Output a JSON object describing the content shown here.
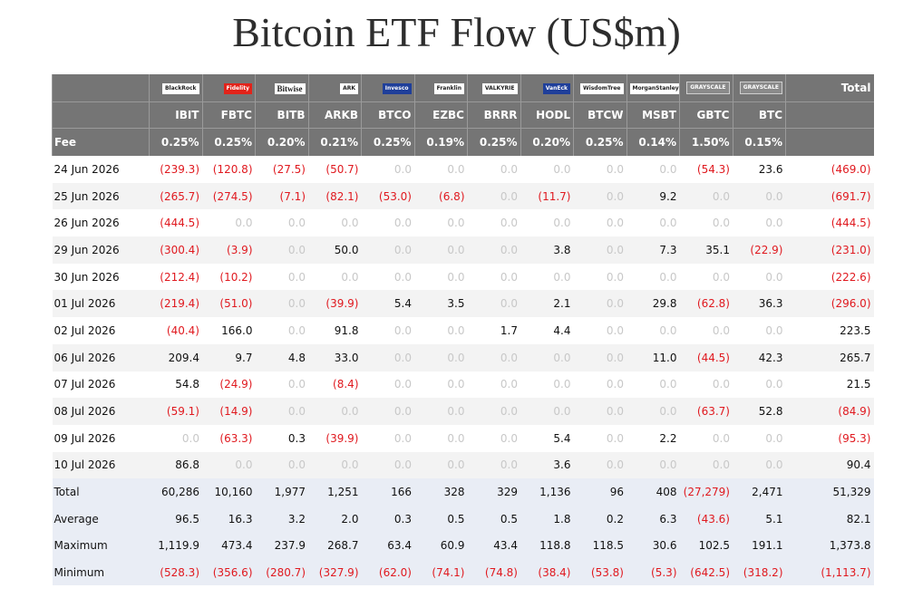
{
  "title": "Bitcoin ETF Flow (US$m)",
  "logos": [
    {
      "text": "BlackRock",
      "style": "white",
      "icon": "blackrock-logo"
    },
    {
      "text": "Fidelity",
      "style": "red",
      "icon": "fidelity-logo"
    },
    {
      "text": "Bitwise",
      "style": "white big",
      "icon": "bitwise-logo"
    },
    {
      "text": "ARK",
      "style": "white",
      "icon": "ark-logo"
    },
    {
      "text": "Invesco",
      "style": "blue",
      "icon": "invesco-logo"
    },
    {
      "text": "Franklin",
      "style": "white",
      "icon": "franklin-logo"
    },
    {
      "text": "VALKYRIE",
      "style": "white",
      "icon": "valkyrie-logo"
    },
    {
      "text": "VanEck",
      "style": "blue",
      "icon": "vaneck-logo"
    },
    {
      "text": "WisdomTree",
      "style": "white",
      "icon": "wisdomtree-logo"
    },
    {
      "text": "MorganStanley",
      "style": "white",
      "icon": "morgan-stanley-logo"
    },
    {
      "text": "GRAYSCALE",
      "style": "grey",
      "icon": "grayscale-logo"
    },
    {
      "text": "GRAYSCALE",
      "style": "grey",
      "icon": "grayscale-mini-logo"
    }
  ],
  "total_label": "Total",
  "tickers": [
    "IBIT",
    "FBTC",
    "BITB",
    "ARKB",
    "BTCO",
    "EZBC",
    "BRRR",
    "HODL",
    "BTCW",
    "MSBT",
    "GBTC",
    "BTC"
  ],
  "fee_label": "Fee",
  "fees": [
    "0.25%",
    "0.25%",
    "0.20%",
    "0.21%",
    "0.25%",
    "0.19%",
    "0.25%",
    "0.20%",
    "0.25%",
    "0.14%",
    "1.50%",
    "0.15%"
  ],
  "chart_data": {
    "type": "table",
    "title": "Bitcoin ETF Flow (US$m)",
    "columns": [
      "IBIT",
      "FBTC",
      "BITB",
      "ARKB",
      "BTCO",
      "EZBC",
      "BRRR",
      "HODL",
      "BTCW",
      "MSBT",
      "GBTC",
      "BTC",
      "Total"
    ],
    "rows": [
      {
        "date": "24 Jun 2026",
        "values": [
          "(239.3)",
          "(120.8)",
          "(27.5)",
          "(50.7)",
          "0.0",
          "0.0",
          "0.0",
          "0.0",
          "0.0",
          "0.0",
          "(54.3)",
          "23.6",
          "(469.0)"
        ]
      },
      {
        "date": "25 Jun 2026",
        "values": [
          "(265.7)",
          "(274.5)",
          "(7.1)",
          "(82.1)",
          "(53.0)",
          "(6.8)",
          "0.0",
          "(11.7)",
          "0.0",
          "9.2",
          "0.0",
          "0.0",
          "(691.7)"
        ]
      },
      {
        "date": "26 Jun 2026",
        "values": [
          "(444.5)",
          "0.0",
          "0.0",
          "0.0",
          "0.0",
          "0.0",
          "0.0",
          "0.0",
          "0.0",
          "0.0",
          "0.0",
          "0.0",
          "(444.5)"
        ]
      },
      {
        "date": "29 Jun 2026",
        "values": [
          "(300.4)",
          "(3.9)",
          "0.0",
          "50.0",
          "0.0",
          "0.0",
          "0.0",
          "3.8",
          "0.0",
          "7.3",
          "35.1",
          "(22.9)",
          "(231.0)"
        ]
      },
      {
        "date": "30 Jun 2026",
        "values": [
          "(212.4)",
          "(10.2)",
          "0.0",
          "0.0",
          "0.0",
          "0.0",
          "0.0",
          "0.0",
          "0.0",
          "0.0",
          "0.0",
          "0.0",
          "(222.6)"
        ]
      },
      {
        "date": "01 Jul 2026",
        "values": [
          "(219.4)",
          "(51.0)",
          "0.0",
          "(39.9)",
          "5.4",
          "3.5",
          "0.0",
          "2.1",
          "0.0",
          "29.8",
          "(62.8)",
          "36.3",
          "(296.0)"
        ]
      },
      {
        "date": "02 Jul 2026",
        "values": [
          "(40.4)",
          "166.0",
          "0.0",
          "91.8",
          "0.0",
          "0.0",
          "1.7",
          "4.4",
          "0.0",
          "0.0",
          "0.0",
          "0.0",
          "223.5"
        ]
      },
      {
        "date": "06 Jul 2026",
        "values": [
          "209.4",
          "9.7",
          "4.8",
          "33.0",
          "0.0",
          "0.0",
          "0.0",
          "0.0",
          "0.0",
          "11.0",
          "(44.5)",
          "42.3",
          "265.7"
        ]
      },
      {
        "date": "07 Jul 2026",
        "values": [
          "54.8",
          "(24.9)",
          "0.0",
          "(8.4)",
          "0.0",
          "0.0",
          "0.0",
          "0.0",
          "0.0",
          "0.0",
          "0.0",
          "0.0",
          "21.5"
        ]
      },
      {
        "date": "08 Jul 2026",
        "values": [
          "(59.1)",
          "(14.9)",
          "0.0",
          "0.0",
          "0.0",
          "0.0",
          "0.0",
          "0.0",
          "0.0",
          "0.0",
          "(63.7)",
          "52.8",
          "(84.9)"
        ]
      },
      {
        "date": "09 Jul 2026",
        "values": [
          "0.0",
          "(63.3)",
          "0.3",
          "(39.9)",
          "0.0",
          "0.0",
          "0.0",
          "5.4",
          "0.0",
          "2.2",
          "0.0",
          "0.0",
          "(95.3)"
        ]
      },
      {
        "date": "10 Jul 2026",
        "values": [
          "86.8",
          "0.0",
          "0.0",
          "0.0",
          "0.0",
          "0.0",
          "0.0",
          "3.6",
          "0.0",
          "0.0",
          "0.0",
          "0.0",
          "90.4"
        ]
      }
    ],
    "summary": [
      {
        "label": "Total",
        "values": [
          "60,286",
          "10,160",
          "1,977",
          "1,251",
          "166",
          "328",
          "329",
          "1,136",
          "96",
          "408",
          "(27,279)",
          "2,471",
          "51,329"
        ]
      },
      {
        "label": "Average",
        "values": [
          "96.5",
          "16.3",
          "3.2",
          "2.0",
          "0.3",
          "0.5",
          "0.5",
          "1.8",
          "0.2",
          "6.3",
          "(43.6)",
          "5.1",
          "82.1"
        ]
      },
      {
        "label": "Maximum",
        "values": [
          "1,119.9",
          "473.4",
          "237.9",
          "268.7",
          "63.4",
          "60.9",
          "43.4",
          "118.8",
          "118.5",
          "30.6",
          "102.5",
          "191.1",
          "1,373.8"
        ]
      },
      {
        "label": "Minimum",
        "values": [
          "(528.3)",
          "(356.6)",
          "(280.7)",
          "(327.9)",
          "(62.0)",
          "(74.1)",
          "(74.8)",
          "(38.4)",
          "(53.8)",
          "(5.3)",
          "(642.5)",
          "(318.2)",
          "(1,113.7)"
        ]
      }
    ]
  },
  "colors": {
    "header_bg": "#757575",
    "negative": "#e0191f",
    "zero": "#c8c8c8",
    "summary_bg": "#e9edf5",
    "shade": "#f3f3f3"
  }
}
